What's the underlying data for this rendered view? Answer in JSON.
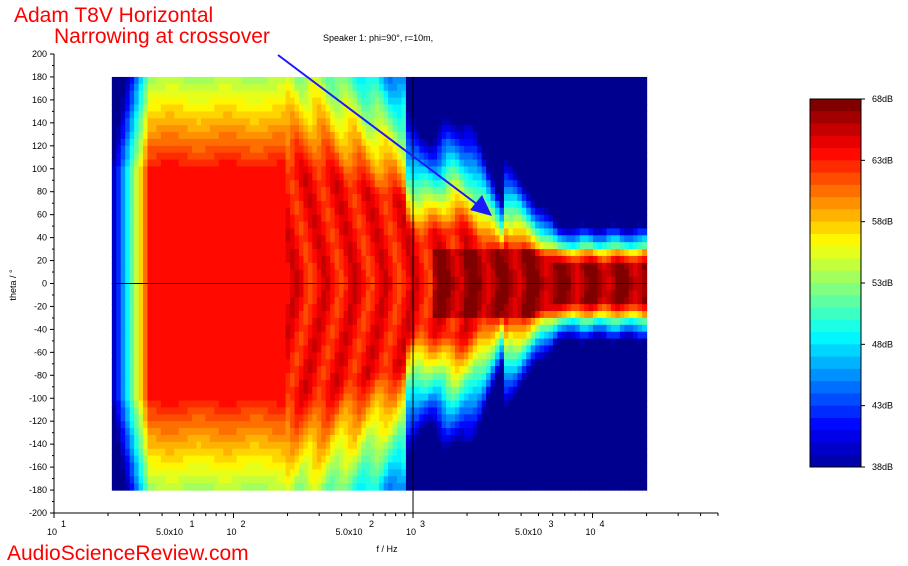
{
  "annotation": {
    "line1": "Adam T8V Horizontal",
    "line2": "Narrowing at crossover",
    "color": "#ff0000",
    "arrow_color": "#1a1aff"
  },
  "watermark": "AudioScienceReview.com",
  "chart_data": {
    "type": "heatmap",
    "title": "Speaker 1: phi=90°, r=10m,",
    "xlabel": "f / Hz",
    "ylabel": "theta / °",
    "x_scale": "log",
    "x_range_data": [
      21,
      20000
    ],
    "x_axis_range": [
      10,
      50000
    ],
    "y_range_data": [
      -180,
      180
    ],
    "y_axis_range": [
      -200,
      200
    ],
    "y_ticks": [
      200,
      180,
      160,
      140,
      120,
      100,
      80,
      60,
      40,
      20,
      0,
      -20,
      -40,
      -60,
      -80,
      -100,
      -120,
      -140,
      -160,
      -180,
      -200
    ],
    "x_tick_labels": [
      {
        "value": 10,
        "base": "10",
        "exp": "1"
      },
      {
        "value": 50,
        "base": "5.0x10",
        "exp": "1"
      },
      {
        "value": 100,
        "base": "10",
        "exp": "2"
      },
      {
        "value": 500,
        "base": "5.0x10",
        "exp": "2"
      },
      {
        "value": 1000,
        "base": "10",
        "exp": "3"
      },
      {
        "value": 5000,
        "base": "5.0x10",
        "exp": "3"
      },
      {
        "value": 10000,
        "base": "10",
        "exp": "4"
      }
    ],
    "crosshair": {
      "freq": 1000,
      "theta": 0
    },
    "colorbar": {
      "min": 38,
      "max": 68,
      "unit": "dB",
      "ticks": [
        "68dB",
        "63dB",
        "58dB",
        "53dB",
        "48dB",
        "43dB",
        "38dB"
      ],
      "tick_values": [
        68,
        63,
        58,
        53,
        48,
        43,
        38
      ]
    },
    "colormap": [
      "#00008f",
      "#0000ff",
      "#0080ff",
      "#00ffff",
      "#80ff80",
      "#ffff00",
      "#ff8000",
      "#ff0000",
      "#800000"
    ]
  }
}
